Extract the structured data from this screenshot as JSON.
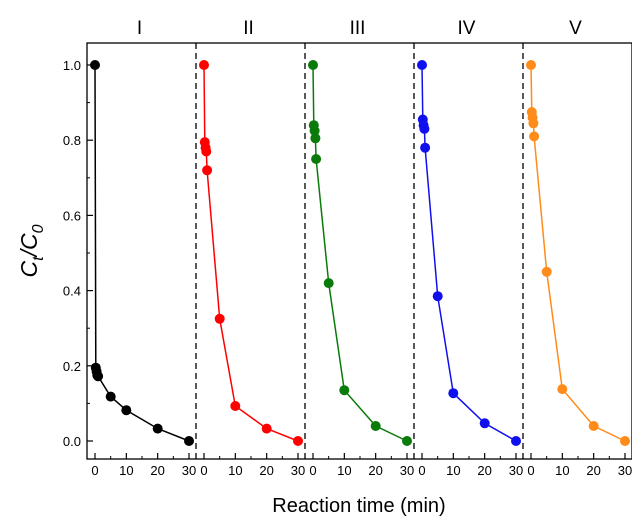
{
  "chart_data": {
    "type": "line",
    "xlabel": "Reaction time (min)",
    "ylabel_main": "C",
    "ylabel_sub_t": "t",
    "ylabel_slash": "/C",
    "ylabel_sub_0": "0",
    "ylim": [
      -0.05,
      1.05
    ],
    "xlim_per_panel": [
      -2,
      32
    ],
    "x_ticks": [
      "0",
      "10",
      "20",
      "30"
    ],
    "y_ticks": [
      "0.0",
      "0.2",
      "0.4",
      "0.6",
      "0.8",
      "1.0"
    ],
    "grid": false,
    "panels": [
      {
        "label": "I",
        "color": "#000000",
        "x": [
          0,
          0.25,
          0.5,
          0.75,
          1,
          5,
          10,
          20,
          30
        ],
        "y": [
          1.0,
          0.195,
          0.185,
          0.175,
          0.172,
          0.118,
          0.082,
          0.033,
          0.0
        ]
      },
      {
        "label": "II",
        "color": "#ff0000",
        "x": [
          0,
          0.25,
          0.5,
          0.75,
          1,
          5,
          10,
          20,
          30
        ],
        "y": [
          1.0,
          0.795,
          0.78,
          0.77,
          0.72,
          0.325,
          0.093,
          0.033,
          0.0
        ]
      },
      {
        "label": "III",
        "color": "#0a7a0a",
        "x": [
          0,
          0.25,
          0.5,
          0.75,
          1,
          5,
          10,
          20,
          30
        ],
        "y": [
          1.0,
          0.84,
          0.825,
          0.805,
          0.75,
          0.42,
          0.135,
          0.04,
          0.0
        ]
      },
      {
        "label": "IV",
        "color": "#1010ee",
        "x": [
          0,
          0.25,
          0.5,
          0.75,
          1,
          5,
          10,
          20,
          30
        ],
        "y": [
          1.0,
          0.855,
          0.84,
          0.83,
          0.78,
          0.385,
          0.127,
          0.047,
          0.0
        ]
      },
      {
        "label": "V",
        "color": "#ff8c1a",
        "x": [
          0,
          0.25,
          0.5,
          0.75,
          1,
          5,
          10,
          20,
          30
        ],
        "y": [
          1.0,
          0.875,
          0.86,
          0.845,
          0.81,
          0.45,
          0.138,
          0.04,
          0.0
        ]
      }
    ]
  }
}
